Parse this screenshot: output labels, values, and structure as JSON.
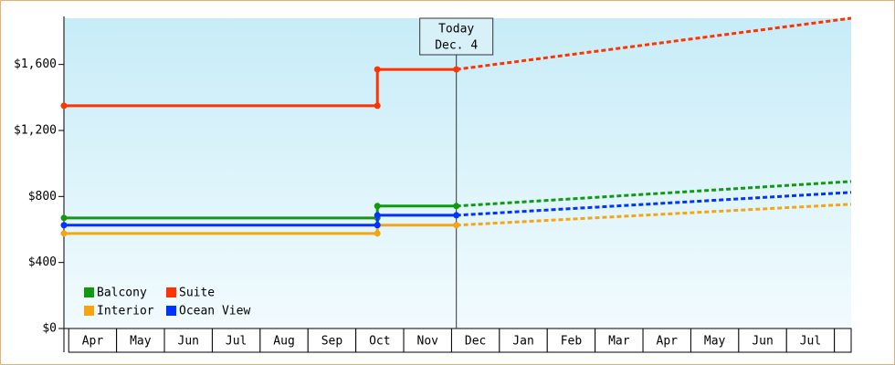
{
  "chart_data": {
    "type": "line",
    "categories": [
      "Apr",
      "May",
      "Jun",
      "Jul",
      "Aug",
      "Sep",
      "Oct",
      "Nov",
      "Dec",
      "Jan",
      "Feb",
      "Mar",
      "Apr",
      "May",
      "Jun",
      "Jul"
    ],
    "x": [
      -0.1,
      6.45,
      6.45,
      8.1
    ],
    "forecast_x": [
      8.1,
      16.35
    ],
    "xlim": [
      -0.1,
      16.35
    ],
    "ylim": [
      0,
      1880
    ],
    "yticks": [
      {
        "value": 0,
        "label": "$0"
      },
      {
        "value": 400,
        "label": "$400"
      },
      {
        "value": 800,
        "label": "$800"
      },
      {
        "value": 1200,
        "label": "$1,200"
      },
      {
        "value": 1600,
        "label": "$1,600"
      }
    ],
    "annotation": {
      "x": 8.1,
      "lines": [
        "Today",
        "Dec. 4"
      ]
    },
    "legend": "lower-left",
    "series": [
      {
        "name": "Balcony",
        "color": "#119911",
        "values": [
          670,
          670,
          742,
          742
        ],
        "forecast": [
          742,
          891
        ]
      },
      {
        "name": "Suite",
        "color": "#ff3300",
        "values": [
          1350,
          1350,
          1570,
          1570
        ],
        "forecast": [
          1570,
          1880
        ]
      },
      {
        "name": "Interior",
        "color": "#f5a511",
        "values": [
          576,
          576,
          626,
          626
        ],
        "forecast": [
          626,
          753
        ]
      },
      {
        "name": "Ocean View",
        "color": "#0033ff",
        "values": [
          626,
          626,
          686,
          686
        ],
        "forecast": [
          686,
          825
        ]
      }
    ]
  }
}
